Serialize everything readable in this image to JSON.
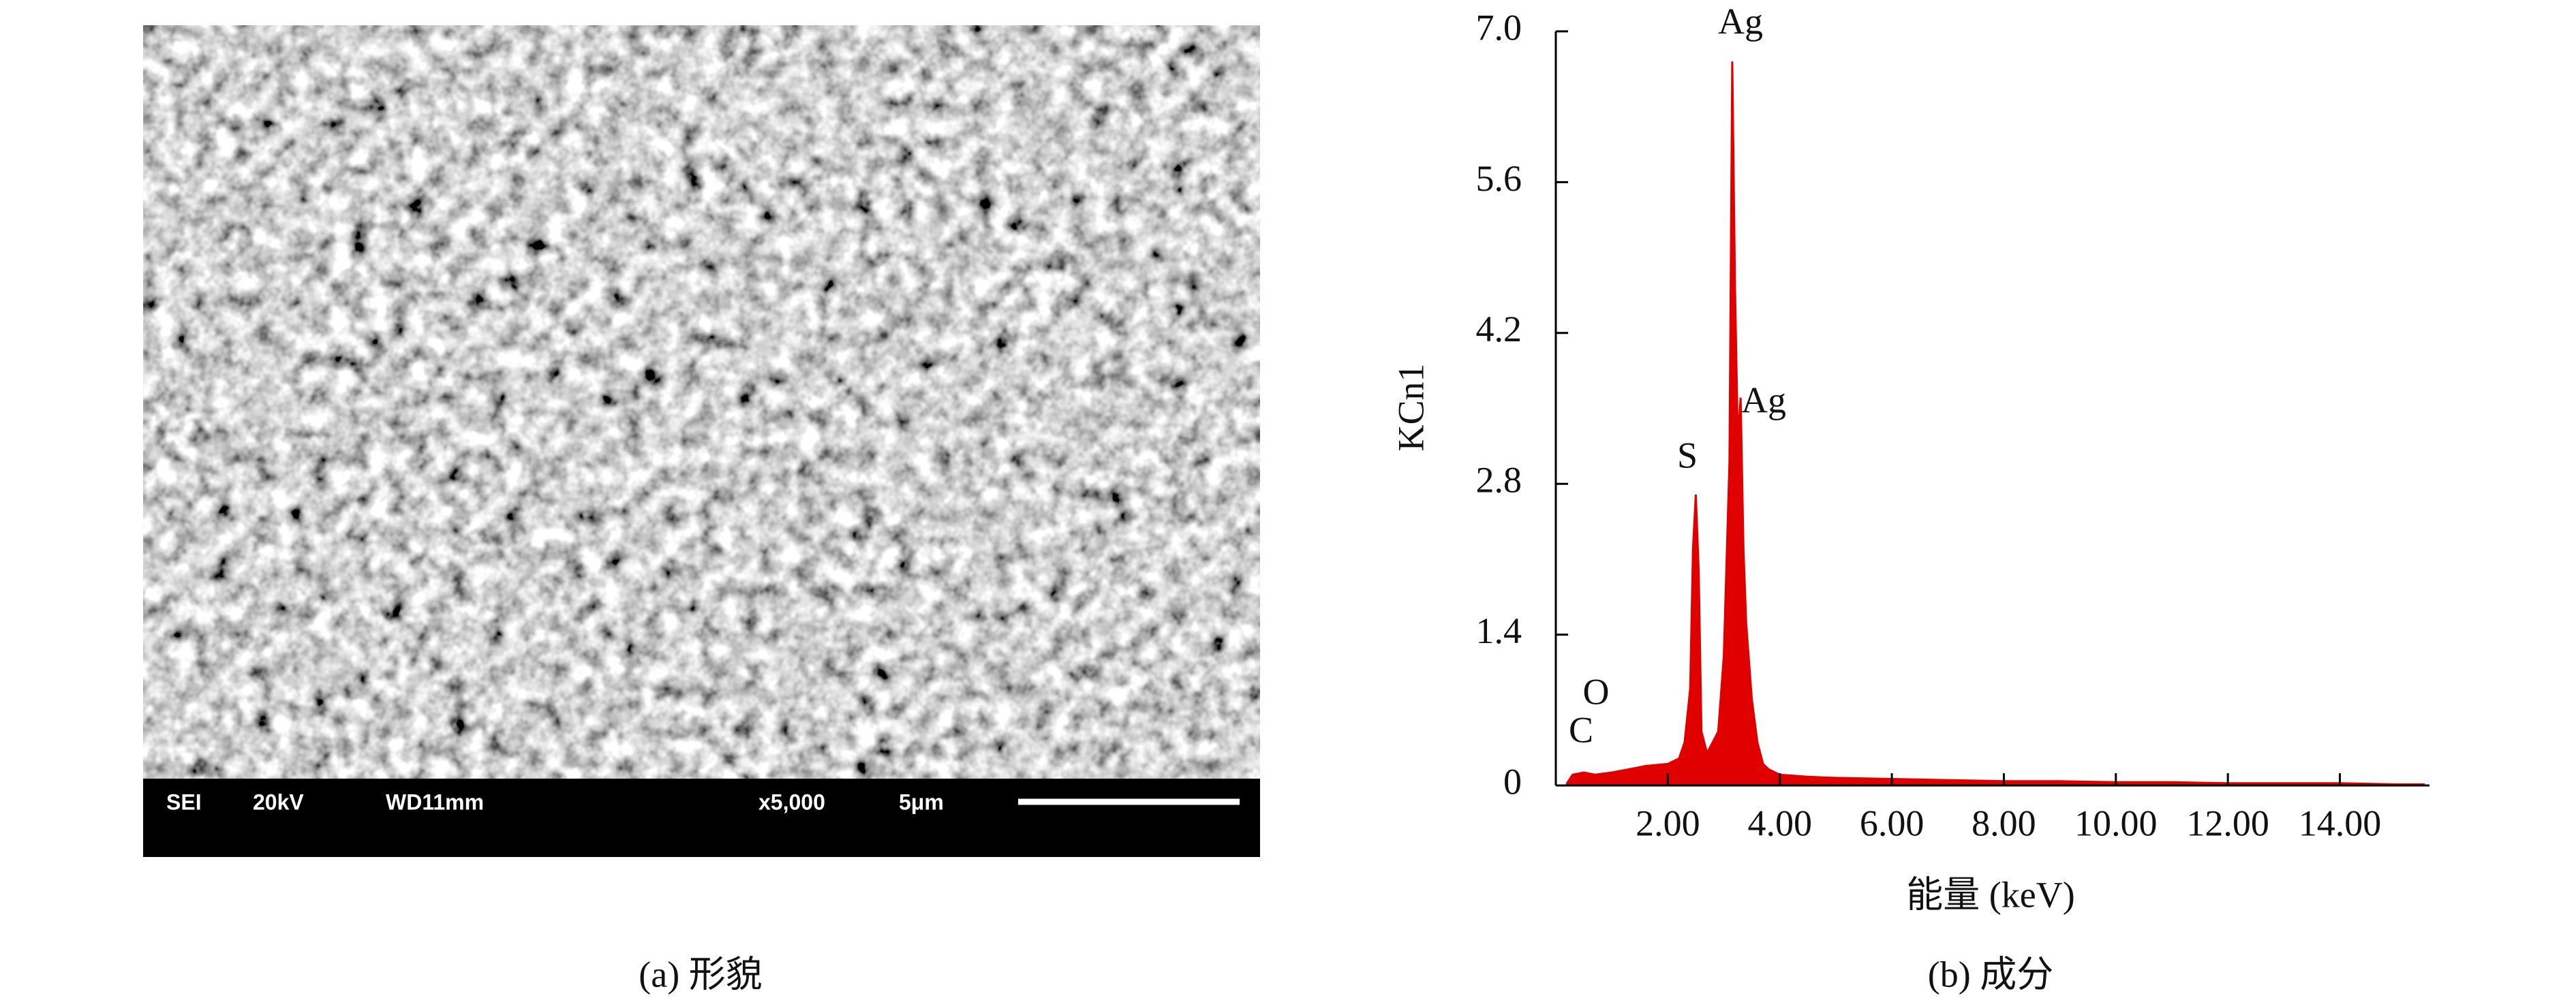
{
  "figure_a": {
    "caption": "(a) 形貌",
    "info_bar": [
      "SEI",
      "20kV",
      "WD11mm",
      "x5,000",
      "5μm"
    ]
  },
  "chart_data": {
    "type": "area",
    "caption": "(b) 成分",
    "xlabel": "能量 (keV)",
    "ylabel": "KCn1",
    "annotations": [
      "Ag",
      "Ag",
      "S",
      "O",
      "C"
    ],
    "xlim": [
      0,
      15.6
    ],
    "ylim": [
      0,
      7
    ],
    "xticks": [
      {
        "value": 2,
        "label": "2.00"
      },
      {
        "value": 4,
        "label": "4.00"
      },
      {
        "value": 6,
        "label": "6.00"
      },
      {
        "value": 8,
        "label": "8.00"
      },
      {
        "value": 10,
        "label": "10.00"
      },
      {
        "value": 12,
        "label": "12.00"
      },
      {
        "value": 14,
        "label": "14.00"
      }
    ],
    "yticks": [
      0,
      1.4,
      2.8,
      4.2,
      5.6,
      {
        "value": 7,
        "label": "7.0"
      }
    ],
    "x": [
      0.2,
      0.3,
      0.5,
      0.7,
      1.0,
      1.3,
      1.6,
      2.0,
      2.2,
      2.3,
      2.4,
      2.45,
      2.5,
      2.55,
      2.6,
      2.7,
      2.9,
      3.0,
      3.1,
      3.15,
      3.2,
      3.25,
      3.3,
      3.35,
      3.4,
      3.5,
      3.6,
      3.7,
      3.8,
      4.0,
      4.5,
      5,
      6,
      7,
      8,
      9,
      10,
      11,
      12,
      13,
      14,
      15,
      15.5
    ],
    "series": [
      {
        "color": "#e00000",
        "values": [
          0.02,
          0.1,
          0.12,
          0.1,
          0.12,
          0.15,
          0.18,
          0.2,
          0.25,
          0.4,
          0.9,
          2.2,
          2.7,
          2.0,
          0.5,
          0.3,
          0.5,
          1.2,
          3.0,
          6.72,
          4.6,
          3.2,
          3.6,
          2.2,
          1.5,
          0.8,
          0.4,
          0.2,
          0.15,
          0.1,
          0.08,
          0.07,
          0.06,
          0.05,
          0.04,
          0.04,
          0.03,
          0.03,
          0.02,
          0.02,
          0.02,
          0.01,
          0.01
        ]
      }
    ]
  }
}
